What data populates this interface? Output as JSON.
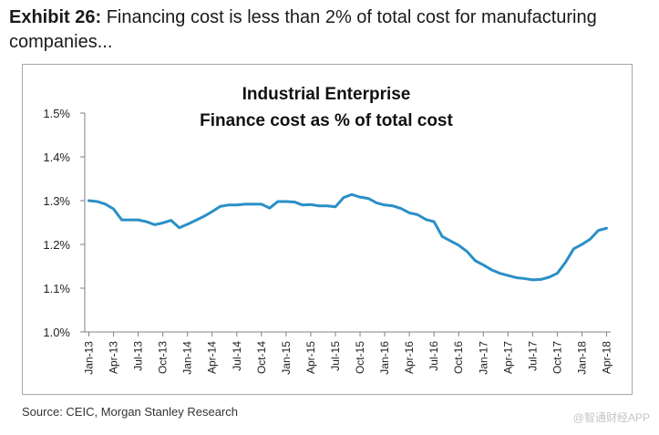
{
  "exhibit": {
    "label": "Exhibit 26:",
    "text": "Financing cost is less than 2% of total cost for manufacturing companies..."
  },
  "source": "Source: CEIC, Morgan Stanley Research",
  "watermark": "@智通财经APP",
  "colors": {
    "line": "#2b8fc6",
    "axis": "#808080",
    "grid": "#c0c0c0"
  },
  "chart_data": {
    "type": "line",
    "title_lines": [
      "Industrial Enterprise",
      "Finance cost as % of total cost"
    ],
    "xlabel": "",
    "ylabel": "",
    "ylim": [
      1.0,
      1.5
    ],
    "yticks": [
      "1.0%",
      "1.1%",
      "1.2%",
      "1.3%",
      "1.4%",
      "1.5%"
    ],
    "ytick_values": [
      1.0,
      1.1,
      1.2,
      1.3,
      1.4,
      1.5
    ],
    "grid": false,
    "xtick_labels": [
      "Jan-13",
      "Apr-13",
      "Jul-13",
      "Oct-13",
      "Jan-14",
      "Apr-14",
      "Jul-14",
      "Oct-14",
      "Jan-15",
      "Apr-15",
      "Jul-15",
      "Oct-15",
      "Jan-16",
      "Apr-16",
      "Jul-16",
      "Oct-16",
      "Jan-17",
      "Apr-17",
      "Jul-17",
      "Oct-17",
      "Jan-18",
      "Apr-18"
    ],
    "series": [
      {
        "name": "Finance cost as % of total cost",
        "start": "Jan-13",
        "values": [
          1.3,
          1.298,
          1.292,
          1.281,
          1.256,
          1.256,
          1.256,
          1.252,
          1.245,
          1.249,
          1.255,
          1.238,
          1.246,
          1.255,
          1.264,
          1.275,
          1.287,
          1.29,
          1.29,
          1.292,
          1.292,
          1.292,
          1.283,
          1.298,
          1.298,
          1.297,
          1.29,
          1.291,
          1.288,
          1.288,
          1.286,
          1.307,
          1.314,
          1.308,
          1.305,
          1.295,
          1.29,
          1.288,
          1.282,
          1.272,
          1.268,
          1.257,
          1.252,
          1.218,
          1.208,
          1.198,
          1.184,
          1.163,
          1.153,
          1.142,
          1.134,
          1.129,
          1.124,
          1.122,
          1.119,
          1.12,
          1.125,
          1.134,
          1.159,
          1.19,
          1.2,
          1.212,
          1.232,
          1.237
        ]
      }
    ]
  }
}
